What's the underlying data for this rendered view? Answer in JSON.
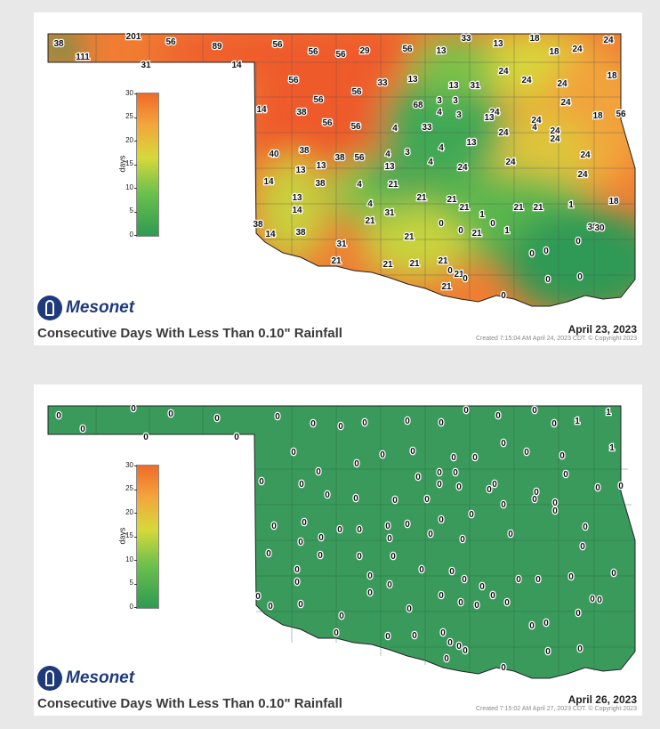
{
  "maps": [
    {
      "brand": "Mesonet",
      "title": "Consecutive Days With Less Than 0.10\" Rainfall",
      "date": "April 23, 2023",
      "credit": "Created 7:15:04 AM April 24, 2023 CDT. © Copyright 2023",
      "legend": {
        "unit": "days",
        "ticks": [
          "30",
          "25",
          "20",
          "15",
          "10",
          "5",
          "0"
        ]
      },
      "county_values": [
        "38",
        "111",
        "201",
        "56",
        "31",
        "89",
        "14",
        "56",
        "56",
        "56",
        "29",
        "56",
        "13",
        "33",
        "13",
        "18",
        "18",
        "24",
        "24",
        "18",
        "56",
        "56",
        "56",
        "33",
        "13",
        "13",
        "31",
        "24",
        "24",
        "24",
        "14",
        "38",
        "56",
        "68",
        "3",
        "3",
        "4",
        "3",
        "24",
        "24",
        "24",
        "18",
        "56",
        "56",
        "4",
        "33",
        "13",
        "24",
        "4",
        "24",
        "40",
        "38",
        "13",
        "13",
        "4",
        "3",
        "24",
        "24",
        "13",
        "38",
        "56",
        "13",
        "4",
        "4",
        "24",
        "24",
        "24",
        "14",
        "13",
        "38",
        "4",
        "21",
        "21",
        "21",
        "18",
        "14",
        "38",
        "4",
        "31",
        "21",
        "1",
        "21",
        "21",
        "1",
        "0",
        "38",
        "14",
        "38",
        "31",
        "21",
        "21",
        "0",
        "0",
        "21",
        "1",
        "0",
        "0",
        "0",
        "30",
        "21",
        "21",
        "21",
        "21",
        "21",
        "21",
        "0",
        "0",
        "0",
        "0",
        "0"
      ]
    },
    {
      "brand": "Mesonet",
      "title": "Consecutive Days With Less Than 0.10\" Rainfall",
      "date": "April 26, 2023",
      "credit": "Created 7:15:02 AM April 27, 2023 CDT. © Copyright 2023",
      "legend": {
        "unit": "days",
        "ticks": [
          "30",
          "25",
          "20",
          "15",
          "10",
          "5",
          "0"
        ]
      },
      "county_values": [
        "0",
        "0",
        "0",
        "0",
        "0",
        "0",
        "0",
        "0",
        "0",
        "0",
        "0",
        "0",
        "0",
        "0",
        "0",
        "0",
        "0",
        "1",
        "1",
        "1",
        "0",
        "0",
        "0",
        "0",
        "0",
        "0",
        "0",
        "0",
        "0",
        "0",
        "0",
        "0",
        "0",
        "0",
        "0",
        "0",
        "0",
        "0",
        "0",
        "0",
        "0",
        "0",
        "0",
        "0",
        "0",
        "0",
        "0",
        "0",
        "0",
        "0",
        "0",
        "0",
        "0",
        "0",
        "0",
        "0",
        "0",
        "0",
        "0",
        "0",
        "0",
        "0",
        "0",
        "0",
        "0",
        "0",
        "0",
        "0",
        "0",
        "0",
        "0",
        "0",
        "0",
        "0",
        "0",
        "0",
        "0",
        "0",
        "0",
        "0",
        "0",
        "0",
        "0",
        "0",
        "0",
        "0",
        "0",
        "0",
        "0",
        "0",
        "0",
        "0",
        "0",
        "0",
        "0",
        "0",
        "0",
        "0",
        "0",
        "0",
        "0",
        "0",
        "0",
        "0",
        "0",
        "0",
        "0",
        "0",
        "0",
        "0"
      ]
    }
  ]
}
